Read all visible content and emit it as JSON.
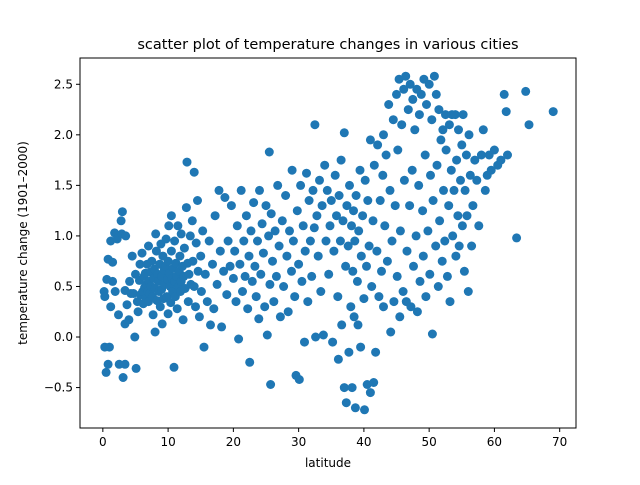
{
  "chart_data": {
    "type": "scatter",
    "title": "scatter plot of temperature changes in various cities",
    "xlabel": "latitude",
    "ylabel": "temperature change (1901–2000)",
    "xlim": [
      -3.5,
      72.5
    ],
    "ylim": [
      -0.9,
      2.76
    ],
    "xticks": [
      0,
      10,
      20,
      30,
      40,
      50,
      60,
      70
    ],
    "yticks": [
      -0.5,
      0.0,
      0.5,
      1.0,
      1.5,
      2.0,
      2.5
    ],
    "xtick_labels": [
      "0",
      "10",
      "20",
      "30",
      "40",
      "50",
      "60",
      "70"
    ],
    "ytick_labels": [
      "−0.5",
      "0.0",
      "0.5",
      "1.0",
      "1.5",
      "2.0",
      "2.5"
    ],
    "grid": false,
    "legend": "none",
    "marker_color": "#1f77b4",
    "points": [
      [
        0.2,
        0.45
      ],
      [
        0.3,
        0.4
      ],
      [
        0.3,
        -0.1
      ],
      [
        0.5,
        -0.35
      ],
      [
        0.6,
        0.57
      ],
      [
        0.8,
        0.77
      ],
      [
        0.8,
        -0.27
      ],
      [
        1.0,
        -0.1
      ],
      [
        1.2,
        0.3
      ],
      [
        1.2,
        0.95
      ],
      [
        1.5,
        0.55
      ],
      [
        1.5,
        0.74
      ],
      [
        1.8,
        1.03
      ],
      [
        1.9,
        0.45
      ],
      [
        2.2,
        0.97
      ],
      [
        2.4,
        0.22
      ],
      [
        2.5,
        -0.27
      ],
      [
        2.8,
        1.15
      ],
      [
        2.9,
        1.02
      ],
      [
        3.0,
        1.24
      ],
      [
        3.1,
        -0.4
      ],
      [
        3.4,
        -0.27
      ],
      [
        3.4,
        0.46
      ],
      [
        3.4,
        0.13
      ],
      [
        3.5,
        1.0
      ],
      [
        3.7,
        0.32
      ],
      [
        4.0,
        0.17
      ],
      [
        4.1,
        0.55
      ],
      [
        4.3,
        0.43
      ],
      [
        4.5,
        0.8
      ],
      [
        4.7,
        0.43
      ],
      [
        4.9,
        0.0
      ],
      [
        5.0,
        0.62
      ],
      [
        5.1,
        -0.31
      ],
      [
        5.3,
        0.35
      ],
      [
        5.4,
        0.25
      ],
      [
        5.6,
        0.56
      ],
      [
        5.7,
        0.72
      ],
      [
        5.8,
        0.42
      ],
      [
        6.0,
        0.83
      ],
      [
        6.1,
        0.45
      ],
      [
        6.2,
        0.33
      ],
      [
        6.3,
        0.6
      ],
      [
        6.4,
        0.49
      ],
      [
        6.5,
        0.63
      ],
      [
        6.6,
        0.38
      ],
      [
        6.7,
        0.52
      ],
      [
        6.8,
        0.72
      ],
      [
        6.9,
        0.45
      ],
      [
        7.0,
        0.9
      ],
      [
        7.0,
        0.35
      ],
      [
        7.1,
        0.55
      ],
      [
        7.2,
        0.43
      ],
      [
        7.3,
        0.64
      ],
      [
        7.4,
        0.5
      ],
      [
        7.5,
        0.75
      ],
      [
        7.6,
        0.4
      ],
      [
        7.7,
        0.22
      ],
      [
        7.8,
        0.58
      ],
      [
        7.9,
        0.67
      ],
      [
        8.0,
        0.05
      ],
      [
        8.0,
        0.48
      ],
      [
        8.1,
        1.02
      ],
      [
        8.2,
        0.85
      ],
      [
        8.3,
        0.36
      ],
      [
        8.4,
        0.62
      ],
      [
        8.5,
        0.55
      ],
      [
        8.6,
        0.45
      ],
      [
        8.7,
        0.72
      ],
      [
        8.8,
        0.3
      ],
      [
        8.9,
        0.92
      ],
      [
        9.0,
        0.6
      ],
      [
        9.0,
        0.47
      ],
      [
        9.1,
        0.13
      ],
      [
        9.2,
        0.8
      ],
      [
        9.3,
        0.38
      ],
      [
        9.4,
        0.66
      ],
      [
        9.5,
        0.52
      ],
      [
        9.6,
        0.7
      ],
      [
        9.7,
        0.97
      ],
      [
        9.8,
        0.4
      ],
      [
        9.9,
        0.57
      ],
      [
        10.0,
        0.23
      ],
      [
        10.0,
        0.75
      ],
      [
        10.1,
        1.1
      ],
      [
        10.2,
        0.63
      ],
      [
        10.3,
        0.5
      ],
      [
        10.4,
        0.34
      ],
      [
        10.5,
        1.2
      ],
      [
        10.5,
        0.85
      ],
      [
        10.6,
        0.58
      ],
      [
        10.7,
        0.45
      ],
      [
        10.8,
        0.68
      ],
      [
        10.9,
        -0.3
      ],
      [
        11.0,
        0.95
      ],
      [
        11.0,
        0.55
      ],
      [
        11.1,
        0.4
      ],
      [
        11.2,
        0.73
      ],
      [
        11.3,
        0.6
      ],
      [
        11.4,
        0.28
      ],
      [
        11.5,
        1.1
      ],
      [
        11.6,
        0.5
      ],
      [
        11.7,
        0.65
      ],
      [
        11.8,
        0.8
      ],
      [
        11.9,
        0.45
      ],
      [
        12.0,
        1.02
      ],
      [
        12.0,
        0.55
      ],
      [
        12.2,
        0.7
      ],
      [
        12.3,
        0.17
      ],
      [
        12.4,
        0.6
      ],
      [
        12.5,
        0.88
      ],
      [
        12.6,
        0.48
      ],
      [
        12.8,
        1.28
      ],
      [
        12.9,
        1.73
      ],
      [
        13.0,
        0.73
      ],
      [
        13.1,
        0.35
      ],
      [
        13.2,
        0.62
      ],
      [
        13.4,
        1.0
      ],
      [
        13.5,
        0.52
      ],
      [
        13.7,
        1.15
      ],
      [
        13.8,
        0.75
      ],
      [
        14.0,
        1.63
      ],
      [
        14.0,
        0.5
      ],
      [
        14.2,
        0.3
      ],
      [
        14.3,
        0.93
      ],
      [
        14.5,
        1.35
      ],
      [
        14.6,
        0.65
      ],
      [
        14.8,
        0.2
      ],
      [
        15.0,
        0.8
      ],
      [
        15.1,
        0.45
      ],
      [
        15.3,
        1.05
      ],
      [
        15.5,
        -0.1
      ],
      [
        15.7,
        0.62
      ],
      [
        16.0,
        0.35
      ],
      [
        16.3,
        0.95
      ],
      [
        16.5,
        0.12
      ],
      [
        16.8,
        0.72
      ],
      [
        17.0,
        0.28
      ],
      [
        17.2,
        1.2
      ],
      [
        17.5,
        0.52
      ],
      [
        17.8,
        1.45
      ],
      [
        18.0,
        0.85
      ],
      [
        18.2,
        0.1
      ],
      [
        18.5,
        0.65
      ],
      [
        18.7,
        1.38
      ],
      [
        19.0,
        0.42
      ],
      [
        19.2,
        0.95
      ],
      [
        19.5,
        0.7
      ],
      [
        19.7,
        1.3
      ],
      [
        20.0,
        0.58
      ],
      [
        20.2,
        0.85
      ],
      [
        20.4,
        0.35
      ],
      [
        20.6,
        1.1
      ],
      [
        20.8,
        -0.02
      ],
      [
        21.0,
        0.72
      ],
      [
        21.2,
        1.45
      ],
      [
        21.4,
        0.45
      ],
      [
        21.6,
        0.95
      ],
      [
        21.8,
        0.6
      ],
      [
        22.0,
        1.2
      ],
      [
        22.2,
        0.28
      ],
      [
        22.4,
        0.8
      ],
      [
        22.5,
        -0.25
      ],
      [
        22.7,
        1.05
      ],
      [
        22.9,
        0.55
      ],
      [
        23.1,
        1.33
      ],
      [
        23.3,
        0.7
      ],
      [
        23.5,
        0.4
      ],
      [
        23.7,
        0.95
      ],
      [
        23.9,
        0.18
      ],
      [
        24.0,
        1.45
      ],
      [
        24.2,
        0.62
      ],
      [
        24.4,
        1.12
      ],
      [
        24.6,
        0.83
      ],
      [
        24.8,
        0.3
      ],
      [
        25.0,
        1.3
      ],
      [
        25.2,
        0.02
      ],
      [
        25.4,
        1.0
      ],
      [
        25.5,
        1.83
      ],
      [
        25.6,
        0.52
      ],
      [
        25.7,
        -0.47
      ],
      [
        25.8,
        1.22
      ],
      [
        26.0,
        0.75
      ],
      [
        26.2,
        0.35
      ],
      [
        26.4,
        1.05
      ],
      [
        26.6,
        0.6
      ],
      [
        26.8,
        1.5
      ],
      [
        27.0,
        0.9
      ],
      [
        27.2,
        0.2
      ],
      [
        27.5,
        1.15
      ],
      [
        27.7,
        0.5
      ],
      [
        28.0,
        1.4
      ],
      [
        28.2,
        0.8
      ],
      [
        28.4,
        0.25
      ],
      [
        28.6,
        1.05
      ],
      [
        28.9,
        0.65
      ],
      [
        29.0,
        1.65
      ],
      [
        29.2,
        0.95
      ],
      [
        29.4,
        0.4
      ],
      [
        29.6,
        -0.38
      ],
      [
        29.8,
        1.25
      ],
      [
        30.0,
        0.72
      ],
      [
        30.1,
        -0.42
      ],
      [
        30.3,
        1.5
      ],
      [
        30.5,
        0.55
      ],
      [
        30.7,
        1.1
      ],
      [
        30.9,
        -0.05
      ],
      [
        31.0,
        0.85
      ],
      [
        31.2,
        1.62
      ],
      [
        31.4,
        0.35
      ],
      [
        31.6,
        1.35
      ],
      [
        31.8,
        0.95
      ],
      [
        32.0,
        0.6
      ],
      [
        32.2,
        1.45
      ],
      [
        32.4,
        1.08
      ],
      [
        32.5,
        2.1
      ],
      [
        32.6,
        0.0
      ],
      [
        32.8,
        1.2
      ],
      [
        33.0,
        0.8
      ],
      [
        33.2,
        1.55
      ],
      [
        33.4,
        0.45
      ],
      [
        33.6,
        1.3
      ],
      [
        33.8,
        0.02
      ],
      [
        34.0,
        1.7
      ],
      [
        34.2,
        0.95
      ],
      [
        34.4,
        1.45
      ],
      [
        34.6,
        0.62
      ],
      [
        34.8,
        1.1
      ],
      [
        35.0,
        1.35
      ],
      [
        35.2,
        -0.05
      ],
      [
        35.4,
        0.85
      ],
      [
        35.6,
        1.6
      ],
      [
        35.8,
        1.2
      ],
      [
        36.0,
        0.4
      ],
      [
        36.1,
        -0.22
      ],
      [
        36.2,
        1.4
      ],
      [
        36.4,
        0.95
      ],
      [
        36.5,
        1.75
      ],
      [
        36.6,
        0.12
      ],
      [
        36.8,
        1.15
      ],
      [
        37.0,
        2.02
      ],
      [
        37.0,
        -0.5
      ],
      [
        37.2,
        0.7
      ],
      [
        37.3,
        -0.65
      ],
      [
        37.4,
        1.3
      ],
      [
        37.6,
        0.9
      ],
      [
        37.7,
        -0.15
      ],
      [
        37.8,
        1.5
      ],
      [
        38.0,
        0.3
      ],
      [
        38.1,
        1.1
      ],
      [
        38.2,
        -0.5
      ],
      [
        38.3,
        0.65
      ],
      [
        38.4,
        1.25
      ],
      [
        38.5,
        0.2
      ],
      [
        38.6,
        0.95
      ],
      [
        38.7,
        -0.7
      ],
      [
        38.8,
        1.4
      ],
      [
        39.0,
        0.55
      ],
      [
        39.1,
        0.12
      ],
      [
        39.2,
        1.05
      ],
      [
        39.4,
        1.65
      ],
      [
        39.5,
        -0.1
      ],
      [
        39.6,
        0.8
      ],
      [
        39.8,
        1.2
      ],
      [
        40.0,
        0.38
      ],
      [
        40.1,
        -0.72
      ],
      [
        40.2,
        1.55
      ],
      [
        40.4,
        0.7
      ],
      [
        40.5,
        -0.47
      ],
      [
        40.6,
        1.35
      ],
      [
        40.8,
        0.9
      ],
      [
        41.0,
        1.95
      ],
      [
        41.0,
        -0.55
      ],
      [
        41.2,
        0.5
      ],
      [
        41.4,
        1.15
      ],
      [
        41.5,
        -0.45
      ],
      [
        41.6,
        1.7
      ],
      [
        41.8,
        -0.15
      ],
      [
        42.0,
        0.85
      ],
      [
        42.1,
        1.9
      ],
      [
        42.3,
        0.4
      ],
      [
        42.5,
        1.35
      ],
      [
        42.7,
        0.65
      ],
      [
        42.9,
        1.6
      ],
      [
        43.0,
        2.0
      ],
      [
        43.0,
        0.3
      ],
      [
        43.2,
        1.1
      ],
      [
        43.4,
        1.8
      ],
      [
        43.6,
        0.75
      ],
      [
        43.8,
        2.3
      ],
      [
        44.0,
        1.45
      ],
      [
        44.1,
        0.05
      ],
      [
        44.3,
        0.95
      ],
      [
        44.5,
        2.15
      ],
      [
        44.6,
        0.35
      ],
      [
        44.8,
        1.3
      ],
      [
        45.0,
        2.4
      ],
      [
        45.1,
        0.6
      ],
      [
        45.2,
        1.85
      ],
      [
        45.4,
        2.55
      ],
      [
        45.5,
        0.2
      ],
      [
        45.6,
        1.05
      ],
      [
        45.8,
        2.1
      ],
      [
        46.0,
        0.45
      ],
      [
        46.1,
        2.45
      ],
      [
        46.2,
        1.55
      ],
      [
        46.4,
        2.58
      ],
      [
        46.5,
        0.35
      ],
      [
        46.6,
        0.85
      ],
      [
        46.8,
        2.25
      ],
      [
        47.0,
        1.3
      ],
      [
        47.1,
        2.5
      ],
      [
        47.2,
        0.3
      ],
      [
        47.4,
        1.65
      ],
      [
        47.5,
        2.35
      ],
      [
        47.6,
        0.7
      ],
      [
        47.8,
        2.05
      ],
      [
        48.0,
        1.0
      ],
      [
        48.1,
        2.45
      ],
      [
        48.2,
        0.25
      ],
      [
        48.4,
        1.5
      ],
      [
        48.5,
        2.2
      ],
      [
        48.6,
        0.55
      ],
      [
        48.8,
        2.4
      ],
      [
        49.0,
        1.25
      ],
      [
        49.1,
        0.8
      ],
      [
        49.2,
        2.55
      ],
      [
        49.4,
        1.8
      ],
      [
        49.5,
        0.4
      ],
      [
        49.6,
        2.3
      ],
      [
        49.8,
        1.05
      ],
      [
        50.0,
        2.5
      ],
      [
        50.1,
        0.62
      ],
      [
        50.2,
        1.6
      ],
      [
        50.4,
        2.15
      ],
      [
        50.5,
        0.03
      ],
      [
        50.6,
        1.35
      ],
      [
        50.8,
        2.58
      ],
      [
        51.0,
        0.9
      ],
      [
        51.1,
        2.4
      ],
      [
        51.2,
        1.7
      ],
      [
        51.4,
        0.5
      ],
      [
        51.5,
        2.25
      ],
      [
        51.6,
        1.15
      ],
      [
        51.8,
        1.95
      ],
      [
        52.0,
        0.75
      ],
      [
        52.1,
        2.05
      ],
      [
        52.2,
        1.45
      ],
      [
        52.4,
        0.95
      ],
      [
        52.5,
        2.2
      ],
      [
        52.6,
        1.85
      ],
      [
        52.8,
        0.6
      ],
      [
        53.0,
        1.3
      ],
      [
        53.1,
        2.1
      ],
      [
        53.2,
        0.35
      ],
      [
        53.4,
        1.65
      ],
      [
        53.5,
        2.2
      ],
      [
        53.6,
        1.0
      ],
      [
        53.8,
        1.45
      ],
      [
        54.0,
        2.2
      ],
      [
        54.1,
        0.8
      ],
      [
        54.2,
        1.75
      ],
      [
        54.4,
        1.2
      ],
      [
        54.5,
        2.05
      ],
      [
        54.6,
        0.9
      ],
      [
        54.8,
        1.55
      ],
      [
        55.0,
        1.9
      ],
      [
        55.1,
        1.1
      ],
      [
        55.2,
        2.2
      ],
      [
        55.4,
        0.65
      ],
      [
        55.5,
        1.45
      ],
      [
        55.7,
        1.8
      ],
      [
        55.8,
        1.2
      ],
      [
        56.0,
        0.45
      ],
      [
        56.1,
        2.0
      ],
      [
        56.3,
        1.6
      ],
      [
        56.5,
        0.9
      ],
      [
        56.7,
        1.3
      ],
      [
        57.0,
        1.75
      ],
      [
        57.3,
        1.55
      ],
      [
        57.6,
        1.1
      ],
      [
        58.0,
        1.8
      ],
      [
        58.3,
        2.05
      ],
      [
        58.6,
        1.45
      ],
      [
        58.9,
        1.6
      ],
      [
        59.2,
        1.8
      ],
      [
        59.5,
        1.65
      ],
      [
        60.0,
        1.85
      ],
      [
        60.5,
        1.7
      ],
      [
        61.0,
        1.75
      ],
      [
        61.5,
        2.4
      ],
      [
        61.8,
        2.23
      ],
      [
        62.0,
        1.8
      ],
      [
        63.4,
        0.98
      ],
      [
        64.8,
        2.43
      ],
      [
        65.3,
        2.1
      ],
      [
        69.0,
        2.23
      ]
    ]
  }
}
